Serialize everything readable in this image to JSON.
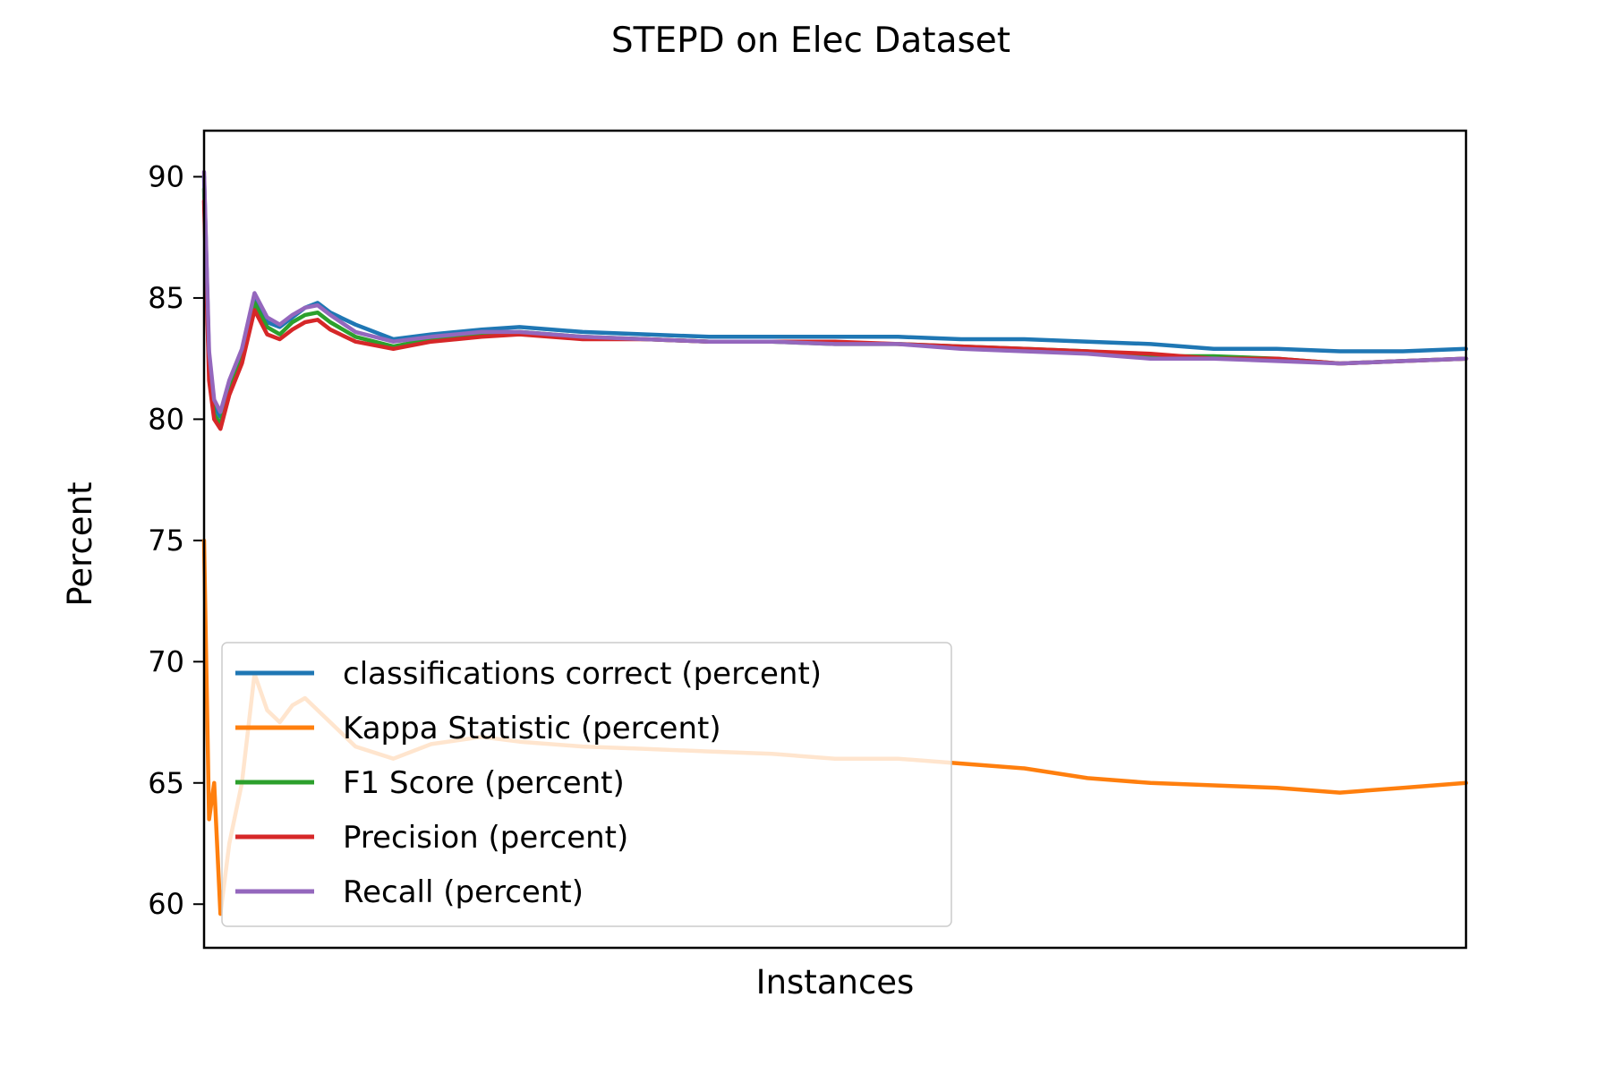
{
  "chart_data": {
    "type": "line",
    "title": "STEPD on Elec Dataset",
    "xlabel": "Instances",
    "ylabel": "Percent",
    "ylim": [
      58.2,
      91.9
    ],
    "yticks": [
      60,
      65,
      70,
      75,
      80,
      85,
      90
    ],
    "xticks_visible": false,
    "grid": false,
    "legend_position": "lower-left",
    "x": [
      0,
      0.004,
      0.008,
      0.013,
      0.02,
      0.03,
      0.04,
      0.05,
      0.06,
      0.07,
      0.08,
      0.09,
      0.1,
      0.12,
      0.15,
      0.18,
      0.22,
      0.25,
      0.3,
      0.35,
      0.4,
      0.45,
      0.5,
      0.55,
      0.6,
      0.65,
      0.7,
      0.75,
      0.8,
      0.85,
      0.9,
      0.95,
      1.0
    ],
    "series": [
      {
        "name": "classifications correct (percent)",
        "color": "#1f77b4",
        "values": [
          90.0,
          82.5,
          80.5,
          80.1,
          81.5,
          82.8,
          85.0,
          84.0,
          83.8,
          84.2,
          84.6,
          84.8,
          84.4,
          83.9,
          83.3,
          83.5,
          83.7,
          83.8,
          83.6,
          83.5,
          83.4,
          83.4,
          83.4,
          83.4,
          83.3,
          83.3,
          83.2,
          83.1,
          82.9,
          82.9,
          82.8,
          82.8,
          82.9
        ]
      },
      {
        "name": "Kappa Statistic (percent)",
        "color": "#ff7f0e",
        "values": [
          75.0,
          63.5,
          65.0,
          59.6,
          62.5,
          65.0,
          69.5,
          68.0,
          67.5,
          68.2,
          68.5,
          68.0,
          67.5,
          66.5,
          66.0,
          66.6,
          66.9,
          66.7,
          66.5,
          66.4,
          66.3,
          66.2,
          66.0,
          66.0,
          65.8,
          65.6,
          65.2,
          65.0,
          64.9,
          64.8,
          64.6,
          64.8,
          65.0
        ]
      },
      {
        "name": "F1 Score (percent)",
        "color": "#2ca02c",
        "values": [
          89.5,
          82.0,
          80.2,
          79.8,
          81.2,
          82.5,
          84.8,
          83.8,
          83.5,
          84.0,
          84.3,
          84.4,
          84.0,
          83.4,
          83.0,
          83.3,
          83.5,
          83.6,
          83.4,
          83.3,
          83.2,
          83.2,
          83.1,
          83.1,
          83.0,
          82.9,
          82.8,
          82.6,
          82.6,
          82.5,
          82.3,
          82.4,
          82.5
        ]
      },
      {
        "name": "Precision (percent)",
        "color": "#d62728",
        "values": [
          89.0,
          81.6,
          80.0,
          79.6,
          81.0,
          82.3,
          84.5,
          83.5,
          83.3,
          83.7,
          84.0,
          84.1,
          83.7,
          83.2,
          82.9,
          83.2,
          83.4,
          83.5,
          83.3,
          83.3,
          83.2,
          83.2,
          83.2,
          83.1,
          83.0,
          82.9,
          82.8,
          82.7,
          82.5,
          82.5,
          82.3,
          82.4,
          82.5
        ]
      },
      {
        "name": "Recall (percent)",
        "color": "#9467bd",
        "values": [
          90.2,
          82.8,
          80.8,
          80.3,
          81.6,
          82.9,
          85.2,
          84.2,
          83.9,
          84.3,
          84.6,
          84.7,
          84.3,
          83.6,
          83.2,
          83.4,
          83.6,
          83.6,
          83.4,
          83.3,
          83.2,
          83.2,
          83.1,
          83.1,
          82.9,
          82.8,
          82.7,
          82.5,
          82.5,
          82.4,
          82.3,
          82.4,
          82.5
        ]
      }
    ]
  }
}
